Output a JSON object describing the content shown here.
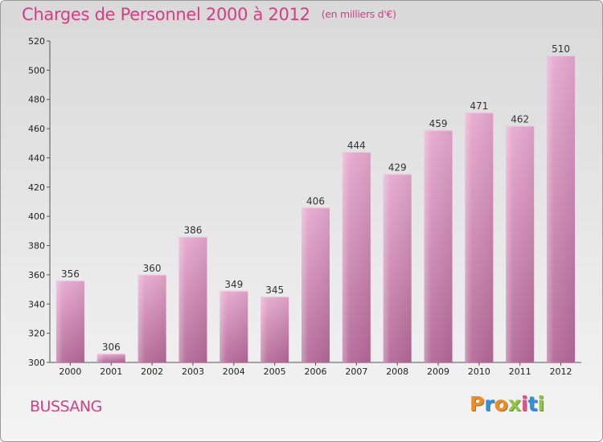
{
  "title": "Charges de Personnel 2000 à 2012",
  "unit_note": "(en milliers d'€)",
  "commune": "BUSSANG",
  "logo": {
    "letters": [
      "P",
      "r",
      "o",
      "x",
      "i",
      "t",
      "i"
    ],
    "colors": [
      "#f28c1e",
      "#2f8fd8",
      "#f28c1e",
      "#8dc63f",
      "#e84d8a",
      "#2f8fd8",
      "#8dc63f"
    ]
  },
  "colors": {
    "title": "#d63e84",
    "bar": "#d98dbb",
    "bar_dark": "#b56a98"
  },
  "chart_data": {
    "type": "bar",
    "title": "Charges de Personnel 2000 à 2012",
    "subtitle": "(en milliers d'€)",
    "categories": [
      "2000",
      "2001",
      "2002",
      "2003",
      "2004",
      "2005",
      "2006",
      "2007",
      "2008",
      "2009",
      "2010",
      "2011",
      "2012"
    ],
    "values": [
      356,
      306,
      360,
      386,
      349,
      345,
      406,
      444,
      429,
      459,
      471,
      462,
      510
    ],
    "ylim": [
      300,
      520
    ],
    "yticks": [
      300,
      320,
      340,
      360,
      380,
      400,
      420,
      440,
      460,
      480,
      500,
      520
    ],
    "grid": false
  }
}
